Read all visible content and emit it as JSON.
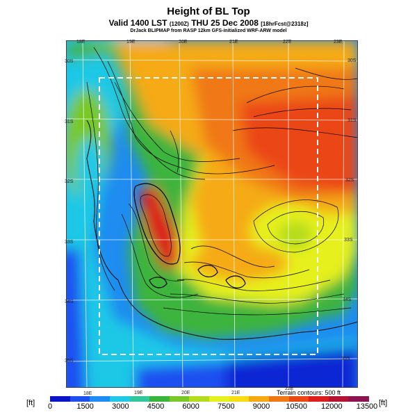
{
  "header": {
    "title": "Height of BL Top",
    "subtitle_main": "Valid 1400 LST",
    "subtitle_code": "(1200Z)",
    "subtitle_rest": "THU 25 Dec 2008",
    "subtitle_tag": "[18hrFcst@2318z]",
    "credit": "DrJack BLIPMAP from RASP 12km GFS-initialized WRF-ARW model"
  },
  "map": {
    "lon_labels_top": [
      "18E",
      "19E",
      "20E",
      "21E",
      "22E",
      "23E"
    ],
    "lon_labels_bottom": [
      "18E",
      "19E",
      "20E",
      "21E",
      "22E"
    ],
    "lat_labels": [
      "30S",
      "31S",
      "32S",
      "33S",
      "34S",
      "35S"
    ],
    "terrain_note": "Terrain contours: 500 ft"
  },
  "colorbar": {
    "unit": "[ft]",
    "labels": [
      "0",
      "1500",
      "3000",
      "4500",
      "6000",
      "7500",
      "9000",
      "10500",
      "12000",
      "13500"
    ],
    "colors": [
      "#0a14c8",
      "#1e50f0",
      "#1e8cf0",
      "#1ec8e6",
      "#32c89b",
      "#3cb43c",
      "#78c828",
      "#b4dc1e",
      "#e6f01e",
      "#fadc14",
      "#f5aa14",
      "#f07814",
      "#eb4614",
      "#dc1e1e",
      "#b41432",
      "#8c1450"
    ]
  }
}
